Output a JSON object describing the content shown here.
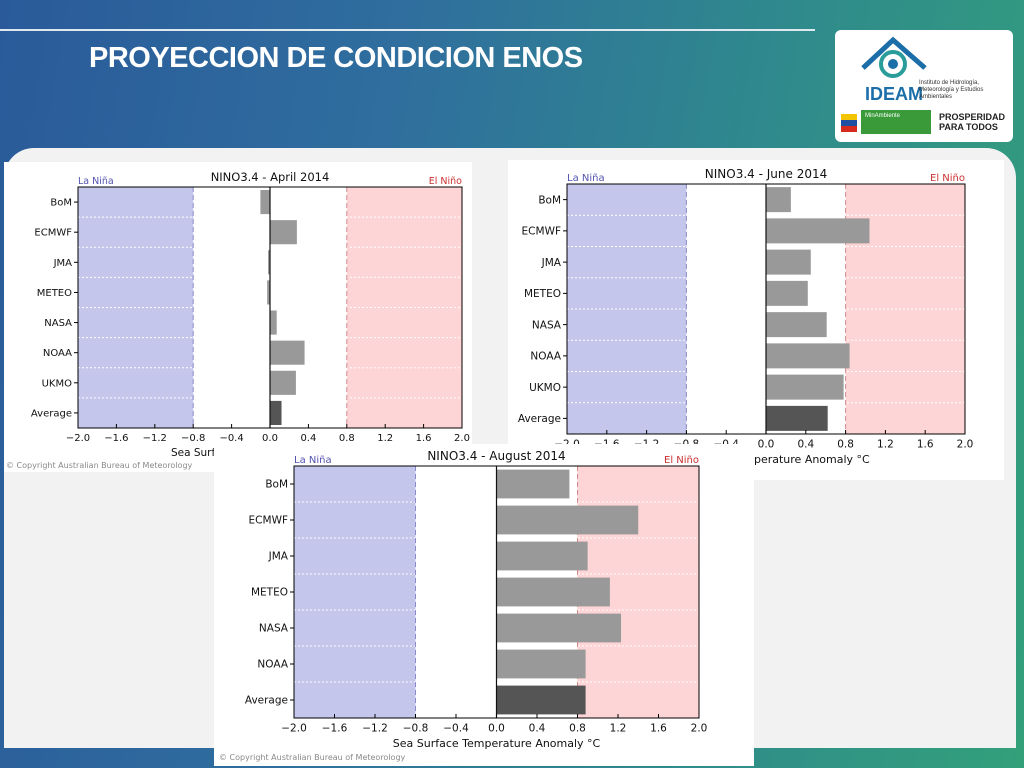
{
  "slide": {
    "title": "PROYECCION DE CONDICION ENOS",
    "logo": {
      "name": "IDEAM",
      "subtitle": "Instituto de Hidrología, Meteorología y Estudios Ambientales",
      "ministry": "MinAmbiente",
      "slogan": "PROSPERIDAD PARA TODOS"
    }
  },
  "chart_data": [
    {
      "type": "bar",
      "orientation": "horizontal",
      "title": "NINO3.4 - April 2014",
      "categories": [
        "BoM",
        "ECMWF",
        "JMA",
        "METEO",
        "NASA",
        "NOAA",
        "UKMO",
        "Average"
      ],
      "values": [
        -0.1,
        0.28,
        -0.02,
        -0.03,
        0.07,
        0.36,
        0.27,
        0.12
      ],
      "xlim": [
        -2.0,
        2.0
      ],
      "xticks": [
        "−2.0",
        "−1.6",
        "−1.2",
        "−0.8",
        "−0.4",
        "0.0",
        "0.4",
        "0.8",
        "1.2",
        "1.6",
        "2.0"
      ],
      "xlabel": "Sea Surface Temperature Anomaly °C",
      "thresholds": [
        -0.8,
        0.8
      ],
      "la_nina_label": "La Niña",
      "el_nino_label": "El Niño",
      "copyright": "© Copyright Australian Bureau of Meteorology",
      "colors": {
        "la_nina": "#c5c6ec",
        "el_nino": "#fdd5d6",
        "bar": "#999999",
        "average_bar": "#555555",
        "la_nina_text": "#5353b0",
        "el_nino_text": "#cc3030"
      }
    },
    {
      "type": "bar",
      "orientation": "horizontal",
      "title": "NINO3.4 - June 2014",
      "categories": [
        "BoM",
        "ECMWF",
        "JMA",
        "METEO",
        "NASA",
        "NOAA",
        "UKMO",
        "Average"
      ],
      "values": [
        0.25,
        1.04,
        0.45,
        0.42,
        0.61,
        0.84,
        0.78,
        0.62
      ],
      "xlim": [
        -2.0,
        2.0
      ],
      "xticks": [
        "−2.0",
        "−1.6",
        "−1.2",
        "−0.8",
        "−0.4",
        "0.0",
        "0.4",
        "0.8",
        "1.2",
        "1.6",
        "2.0"
      ],
      "xlabel": "Sea Surface Temperature Anomaly °C",
      "thresholds": [
        -0.8,
        0.8
      ],
      "la_nina_label": "La Niña",
      "el_nino_label": "El Niño",
      "copyright": "",
      "colors": {
        "la_nina": "#c5c6ec",
        "el_nino": "#fdd5d6",
        "bar": "#999999",
        "average_bar": "#555555",
        "la_nina_text": "#5353b0",
        "el_nino_text": "#cc3030"
      }
    },
    {
      "type": "bar",
      "orientation": "horizontal",
      "title": "NINO3.4 - August 2014",
      "categories": [
        "BoM",
        "ECMWF",
        "JMA",
        "METEO",
        "NASA",
        "NOAA",
        "Average"
      ],
      "values": [
        0.72,
        1.4,
        0.9,
        1.12,
        1.23,
        0.88,
        0.88
      ],
      "xlim": [
        -2.0,
        2.0
      ],
      "xticks": [
        "−2.0",
        "−1.6",
        "−1.2",
        "−0.8",
        "−0.4",
        "0.0",
        "0.4",
        "0.8",
        "1.2",
        "1.6",
        "2.0"
      ],
      "xlabel": "Sea Surface Temperature Anomaly °C",
      "thresholds": [
        -0.8,
        0.8
      ],
      "la_nina_label": "La Niña",
      "el_nino_label": "El Niño",
      "copyright": "© Copyright Australian Bureau of Meteorology",
      "colors": {
        "la_nina": "#c5c6ec",
        "el_nino": "#fdd5d6",
        "bar": "#999999",
        "average_bar": "#555555",
        "la_nina_text": "#5353b0",
        "el_nino_text": "#cc3030"
      }
    }
  ]
}
